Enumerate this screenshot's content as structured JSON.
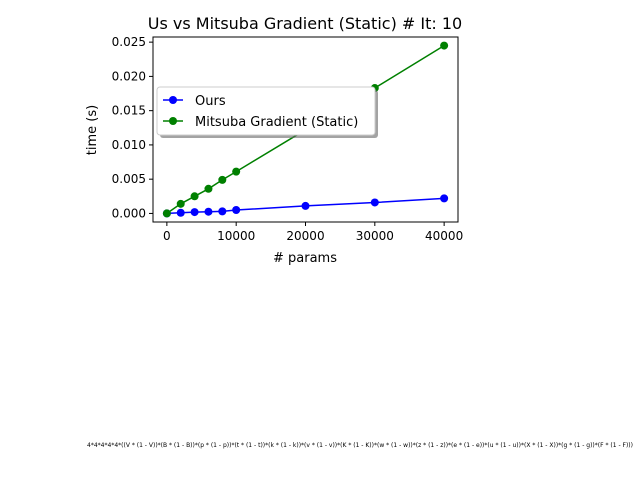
{
  "chart_data": {
    "type": "line",
    "title": "Us vs Mitsuba Gradient (Static) # It: 10",
    "xlabel": "# params",
    "ylabel": "time (s)",
    "xlim": [
      -2000,
      42000
    ],
    "ylim": [
      -0.00125,
      0.02575
    ],
    "xticks": [
      0,
      10000,
      20000,
      30000,
      40000
    ],
    "xtick_labels": [
      "0",
      "10000",
      "20000",
      "30000",
      "40000"
    ],
    "yticks": [
      0.0,
      0.005,
      0.01,
      0.015,
      0.02,
      0.025
    ],
    "ytick_labels": [
      "0.000",
      "0.005",
      "0.010",
      "0.015",
      "0.020",
      "0.025"
    ],
    "grid": false,
    "legend_position": "upper-left",
    "series": [
      {
        "name": "Ours",
        "color": "#0000ff",
        "marker": "circle",
        "x": [
          0,
          2000,
          4000,
          6000,
          8000,
          10000,
          20000,
          30000,
          40000
        ],
        "y": [
          0.0,
          0.0001,
          0.0002,
          0.00025,
          0.0003,
          0.0005,
          0.0011,
          0.0016,
          0.0022
        ]
      },
      {
        "name": "Mitsuba Gradient (Static)",
        "color": "#008000",
        "marker": "circle",
        "x": [
          0,
          2000,
          4000,
          6000,
          8000,
          10000,
          20000,
          30000,
          40000
        ],
        "y": [
          0.0,
          0.0014,
          0.0025,
          0.0036,
          0.0049,
          0.0061,
          0.0122,
          0.0183,
          0.0245
        ]
      }
    ]
  },
  "footnote": "4*4*4*4*4*((V * (1 - V))*(B * (1 - B))*(p * (1 - p))*(t * (1 - t))*(k * (1 - k))*(v * (1 - v))*(K * (1 - K))*(w * (1 - w))*(z * (1 - z))*(e * (1 - e))*(u * (1 - u))*(X * (1 - X))*(g * (1 - g))*(F * (1 - F)))"
}
